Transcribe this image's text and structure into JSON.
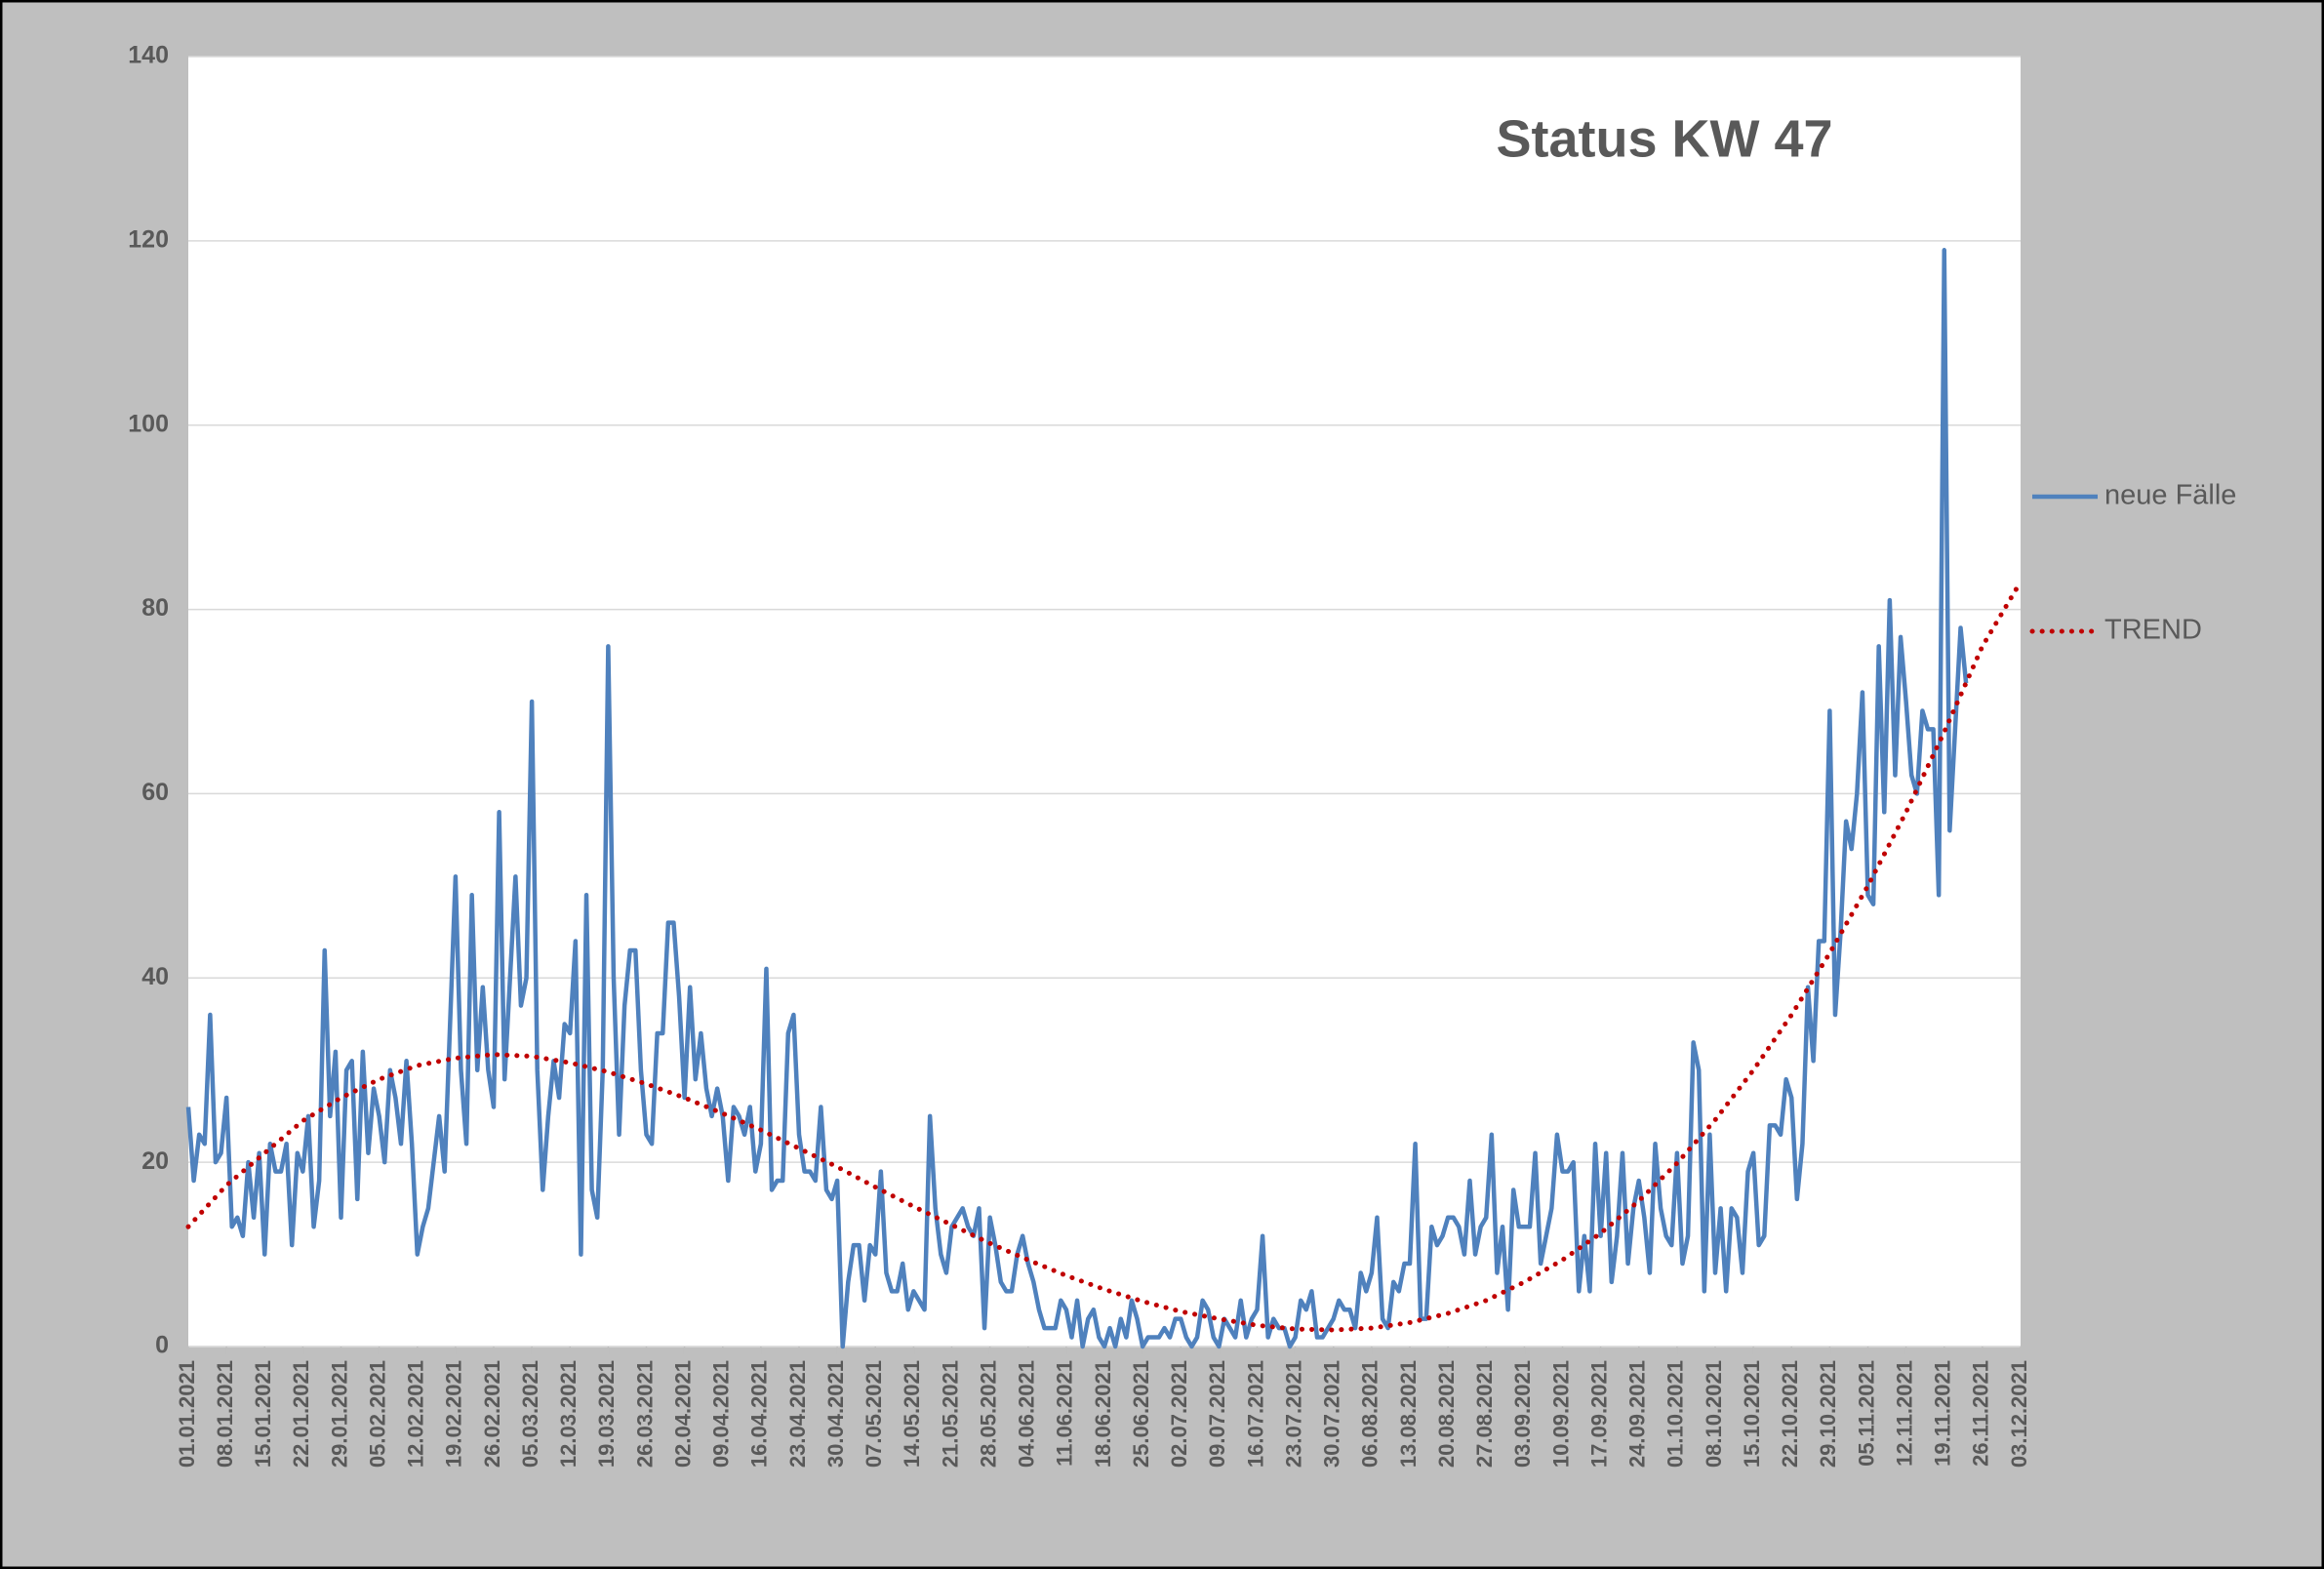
{
  "chart_data": {
    "type": "line",
    "title": "Status KW 47",
    "categories": [
      "01.01.2021",
      null,
      null,
      null,
      null,
      null,
      null,
      "08.01.2021",
      null,
      null,
      null,
      null,
      null,
      null,
      "15.01.2021",
      null,
      null,
      null,
      null,
      null,
      null,
      "22.01.2021",
      null,
      null,
      null,
      null,
      null,
      null,
      "29.01.2021",
      null,
      null,
      null,
      null,
      null,
      null,
      "05.02.2021",
      null,
      null,
      null,
      null,
      null,
      null,
      "12.02.2021",
      null,
      null,
      null,
      null,
      null,
      null,
      "19.02.2021",
      null,
      null,
      null,
      null,
      null,
      null,
      "26.02.2021",
      null,
      null,
      null,
      null,
      null,
      null,
      "05.03.2021",
      null,
      null,
      null,
      null,
      null,
      null,
      "12.03.2021",
      null,
      null,
      null,
      null,
      null,
      null,
      "19.03.2021",
      null,
      null,
      null,
      null,
      null,
      null,
      "26.03.2021",
      null,
      null,
      null,
      null,
      null,
      null,
      "02.04.2021",
      null,
      null,
      null,
      null,
      null,
      null,
      "09.04.2021",
      null,
      null,
      null,
      null,
      null,
      null,
      "16.04.2021",
      null,
      null,
      null,
      null,
      null,
      null,
      "23.04.2021",
      null,
      null,
      null,
      null,
      null,
      null,
      "30.04.2021",
      null,
      null,
      null,
      null,
      null,
      null,
      "07.05.2021",
      null,
      null,
      null,
      null,
      null,
      null,
      "14.05.2021",
      null,
      null,
      null,
      null,
      null,
      null,
      "21.05.2021",
      null,
      null,
      null,
      null,
      null,
      null,
      "28.05.2021",
      null,
      null,
      null,
      null,
      null,
      null,
      "04.06.2021",
      null,
      null,
      null,
      null,
      null,
      null,
      "11.06.2021",
      null,
      null,
      null,
      null,
      null,
      null,
      "18.06.2021",
      null,
      null,
      null,
      null,
      null,
      null,
      "25.06.2021",
      null,
      null,
      null,
      null,
      null,
      null,
      "02.07.2021",
      null,
      null,
      null,
      null,
      null,
      null,
      "09.07.2021",
      null,
      null,
      null,
      null,
      null,
      null,
      "16.07.2021",
      null,
      null,
      null,
      null,
      null,
      null,
      "23.07.2021",
      null,
      null,
      null,
      null,
      null,
      null,
      "30.07.2021",
      null,
      null,
      null,
      null,
      null,
      null,
      "06.08.2021",
      null,
      null,
      null,
      null,
      null,
      null,
      "13.08.2021",
      null,
      null,
      null,
      null,
      null,
      null,
      "20.08.2021",
      null,
      null,
      null,
      null,
      null,
      null,
      "27.08.2021",
      null,
      null,
      null,
      null,
      null,
      null,
      "03.09.2021",
      null,
      null,
      null,
      null,
      null,
      null,
      "10.09.2021",
      null,
      null,
      null,
      null,
      null,
      null,
      "17.09.2021",
      null,
      null,
      null,
      null,
      null,
      null,
      "24.09.2021",
      null,
      null,
      null,
      null,
      null,
      null,
      "01.10.2021",
      null,
      null,
      null,
      null,
      null,
      null,
      "08.10.2021",
      null,
      null,
      null,
      null,
      null,
      null,
      "15.10.2021",
      null,
      null,
      null,
      null,
      null,
      null,
      "22.10.2021",
      null,
      null,
      null,
      null,
      null,
      null,
      "29.10.2021",
      null,
      null,
      null,
      null,
      null,
      null,
      "05.11.2021",
      null,
      null,
      null,
      null,
      null,
      null,
      "12.11.2021",
      null,
      null,
      null,
      null,
      null,
      null,
      "19.11.2021",
      null,
      null,
      null,
      null,
      null,
      null,
      "26.11.2021",
      null,
      null,
      null,
      null,
      null,
      null,
      "03.12.2021"
    ],
    "series": [
      {
        "name": "neue Fälle",
        "color": "#4f81bd",
        "values": [
          26,
          18,
          23,
          22,
          36,
          20,
          21,
          27,
          13,
          14,
          12,
          20,
          14,
          21,
          10,
          22,
          19,
          19,
          22,
          11,
          21,
          19,
          25,
          13,
          18,
          43,
          25,
          32,
          14,
          30,
          31,
          16,
          32,
          21,
          28,
          25,
          20,
          30,
          27,
          22,
          31,
          22,
          10,
          13,
          15,
          20,
          25,
          19,
          35,
          51,
          30,
          22,
          49,
          30,
          39,
          30,
          26,
          58,
          29,
          40,
          51,
          37,
          40,
          70,
          30,
          17,
          25,
          31,
          27,
          35,
          34,
          44,
          10,
          49,
          17,
          14,
          30,
          76,
          40,
          23,
          37,
          43,
          43,
          30,
          23,
          22,
          34,
          34,
          46,
          46,
          38,
          27,
          39,
          29,
          34,
          28,
          25,
          28,
          25,
          18,
          26,
          25,
          23,
          26,
          19,
          22,
          41,
          17,
          18,
          18,
          34,
          36,
          23,
          19,
          19,
          18,
          26,
          17,
          16,
          18,
          0,
          7,
          11,
          11,
          5,
          11,
          10,
          19,
          8,
          6,
          6,
          9,
          4,
          6,
          5,
          4,
          25,
          15,
          10,
          8,
          13,
          14,
          15,
          13,
          12,
          15,
          2,
          14,
          11,
          7,
          6,
          6,
          10,
          12,
          9,
          7,
          4,
          2,
          2,
          2,
          5,
          4,
          1,
          5,
          0,
          3,
          4,
          1,
          0,
          2,
          0,
          3,
          1,
          5,
          3,
          0,
          1,
          1,
          1,
          2,
          1,
          3,
          3,
          1,
          0,
          1,
          5,
          4,
          1,
          0,
          3,
          2,
          1,
          5,
          1,
          3,
          4,
          12,
          1,
          3,
          2,
          2,
          0,
          1,
          5,
          4,
          6,
          1,
          1,
          2,
          3,
          5,
          4,
          4,
          2,
          8,
          6,
          8,
          14,
          3,
          2,
          7,
          6,
          9,
          9,
          22,
          3,
          3,
          13,
          11,
          12,
          14,
          14,
          13,
          10,
          18,
          10,
          13,
          14,
          23,
          8,
          13,
          4,
          17,
          13,
          13,
          13,
          21,
          9,
          12,
          15,
          23,
          19,
          19,
          20,
          6,
          12,
          6,
          22,
          12,
          21,
          7,
          12,
          21,
          9,
          15,
          18,
          14,
          8,
          22,
          15,
          12,
          11,
          21,
          9,
          12,
          33,
          30,
          6,
          23,
          8,
          15,
          6,
          15,
          14,
          8,
          19,
          21,
          11,
          12,
          24,
          24,
          23,
          29,
          27,
          16,
          22,
          39,
          31,
          44,
          44,
          69,
          36,
          45,
          57,
          54,
          60,
          71,
          49,
          48,
          76,
          58,
          81,
          62,
          77,
          70,
          62,
          60,
          69,
          67,
          67,
          49,
          119,
          56,
          67,
          78,
          72,
          null,
          null,
          null,
          null,
          null,
          null,
          null,
          null,
          null,
          null
        ]
      },
      {
        "name": "TREND",
        "color": "#c00000",
        "style": "dotted",
        "x": [
          "01.01.2021",
          "08.01.2021",
          "15.01.2021",
          "22.01.2021",
          "29.01.2021",
          "05.02.2021",
          "12.02.2021",
          "19.02.2021",
          "26.02.2021",
          "05.03.2021",
          "12.03.2021",
          "19.03.2021",
          "26.03.2021",
          "02.04.2021",
          "09.04.2021",
          "16.04.2021",
          "23.04.2021",
          "30.04.2021",
          "07.05.2021",
          "14.05.2021",
          "21.05.2021",
          "28.05.2021",
          "04.06.2021",
          "11.06.2021",
          "18.06.2021",
          "25.06.2021",
          "02.07.2021",
          "09.07.2021",
          "16.07.2021",
          "23.07.2021",
          "30.07.2021",
          "06.08.2021",
          "13.08.2021",
          "20.08.2021",
          "27.08.2021",
          "03.09.2021",
          "10.09.2021",
          "17.09.2021",
          "24.09.2021",
          "01.10.2021",
          "08.10.2021",
          "15.10.2021",
          "22.10.2021",
          "29.10.2021",
          "05.11.2021",
          "12.11.2021",
          "19.11.2021",
          "26.11.2021",
          "03.12.2021"
        ],
        "values": [
          13,
          17.5,
          21,
          24.5,
          27,
          29,
          30.5,
          31.3,
          31.7,
          31.5,
          30.8,
          29.8,
          28.5,
          27,
          25.3,
          23.5,
          21.5,
          19.5,
          17.3,
          15.2,
          13.2,
          11.2,
          9.4,
          7.7,
          6.2,
          4.9,
          3.8,
          3,
          2.3,
          1.9,
          1.8,
          2,
          2.6,
          3.6,
          5,
          7,
          9.4,
          12.3,
          15.8,
          19.9,
          24.6,
          30,
          36,
          42.7,
          50,
          58,
          66.7,
          76,
          83
        ]
      }
    ],
    "ylim": [
      0,
      140
    ],
    "yticks": [
      0,
      20,
      40,
      60,
      80,
      100,
      120,
      140
    ],
    "grid": true,
    "legend": "right"
  }
}
